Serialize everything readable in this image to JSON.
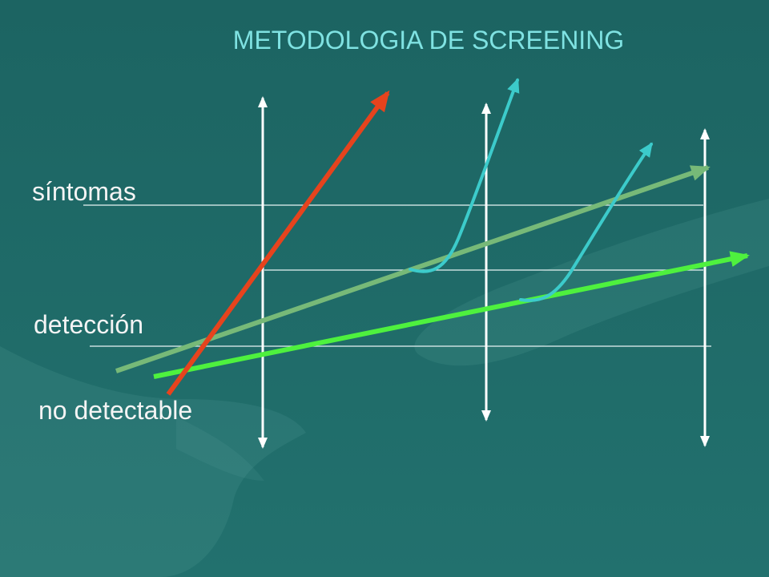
{
  "slide": {
    "title": "METODOLOGIA DE SCREENING",
    "labels": {
      "symptoms": "síntomas",
      "detection": "detección",
      "undetectable": "no detectable"
    }
  },
  "colors": {
    "background_top": "#1c6462",
    "background_bottom": "#22716e",
    "title": "#7fe2e2",
    "label": "#f4f4f4",
    "threshold_line": "#e8f4f4",
    "screening_axis": "#ffffff",
    "red_arrow": "#e6431d",
    "sage_arrow": "#77b978",
    "green_arrow": "#4ef13e",
    "cyan_curve": "#3ccbcb"
  }
}
